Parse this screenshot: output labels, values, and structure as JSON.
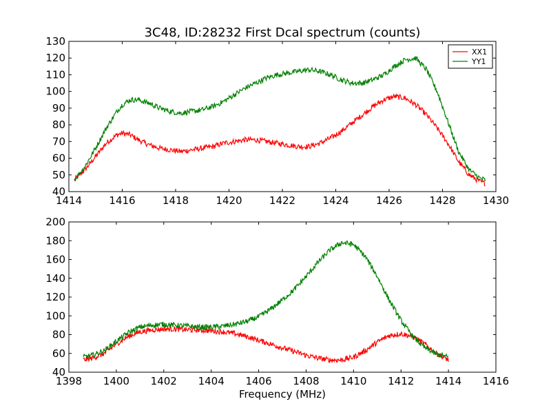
{
  "chart_data": [
    {
      "type": "line",
      "title": "3C48, ID:28232 First Dcal spectrum (counts)",
      "xlabel": "",
      "ylabel": "",
      "xlim": [
        1414,
        1430
      ],
      "ylim": [
        40,
        130
      ],
      "xticks": [
        1414,
        1416,
        1418,
        1420,
        1422,
        1424,
        1426,
        1428,
        1430
      ],
      "yticks": [
        40,
        50,
        60,
        70,
        80,
        90,
        100,
        110,
        120,
        130
      ],
      "grid": false,
      "legend": "top-right",
      "series": [
        {
          "name": "XX1",
          "color": "#ff0000",
          "x": [
            1414.2,
            1414.6,
            1415.0,
            1415.4,
            1415.8,
            1416.0,
            1416.3,
            1416.6,
            1417.0,
            1417.4,
            1417.8,
            1418.2,
            1418.6,
            1419.0,
            1419.4,
            1419.8,
            1420.2,
            1420.6,
            1421.0,
            1421.4,
            1421.8,
            1422.2,
            1422.6,
            1423.0,
            1423.4,
            1423.8,
            1424.2,
            1424.6,
            1425.0,
            1425.4,
            1425.8,
            1426.2,
            1426.6,
            1427.0,
            1427.4,
            1427.8,
            1428.2,
            1428.6,
            1429.0,
            1429.4,
            1429.6
          ],
          "values": [
            47,
            53,
            61,
            69,
            74,
            75,
            74,
            71,
            68,
            66,
            65,
            64,
            65,
            66,
            67,
            69,
            70,
            71,
            71,
            70,
            69,
            68,
            67,
            67,
            69,
            72,
            76,
            81,
            86,
            91,
            95,
            97,
            96,
            92,
            86,
            78,
            69,
            58,
            50,
            46,
            45
          ]
        },
        {
          "name": "YY1",
          "color": "#008000",
          "x": [
            1414.2,
            1414.6,
            1415.0,
            1415.4,
            1415.8,
            1416.0,
            1416.3,
            1416.6,
            1417.0,
            1417.4,
            1417.8,
            1418.2,
            1418.6,
            1419.0,
            1419.4,
            1419.8,
            1420.2,
            1420.6,
            1421.0,
            1421.4,
            1421.8,
            1422.2,
            1422.6,
            1423.0,
            1423.4,
            1423.8,
            1424.2,
            1424.6,
            1425.0,
            1425.4,
            1425.8,
            1426.2,
            1426.6,
            1427.0,
            1427.4,
            1427.8,
            1428.2,
            1428.6,
            1429.0,
            1429.4,
            1429.6
          ],
          "values": [
            47,
            55,
            66,
            78,
            88,
            92,
            95,
            95,
            93,
            90,
            88,
            87,
            88,
            89,
            91,
            94,
            98,
            102,
            105,
            108,
            110,
            111,
            112,
            113,
            112,
            110,
            107,
            105,
            105,
            107,
            110,
            115,
            119,
            120,
            113,
            100,
            82,
            64,
            53,
            48,
            47
          ]
        }
      ]
    },
    {
      "type": "line",
      "title": "",
      "xlabel": "Frequency (MHz)",
      "ylabel": "",
      "xlim": [
        1398,
        1416
      ],
      "ylim": [
        40,
        200
      ],
      "xticks": [
        1398,
        1400,
        1402,
        1404,
        1406,
        1408,
        1410,
        1412,
        1414,
        1416
      ],
      "yticks": [
        40,
        60,
        80,
        100,
        120,
        140,
        160,
        180,
        200
      ],
      "grid": false,
      "legend": "none",
      "series": [
        {
          "name": "XX1",
          "color": "#ff0000",
          "x": [
            1398.6,
            1399.0,
            1399.5,
            1400.0,
            1400.5,
            1401.0,
            1401.5,
            1402.0,
            1402.5,
            1403.0,
            1403.5,
            1404.0,
            1404.5,
            1405.0,
            1405.5,
            1406.0,
            1406.5,
            1407.0,
            1407.5,
            1408.0,
            1408.5,
            1409.0,
            1409.5,
            1410.0,
            1410.5,
            1411.0,
            1411.5,
            1412.0,
            1412.5,
            1413.0,
            1413.5,
            1414.0
          ],
          "values": [
            53,
            55,
            60,
            70,
            78,
            83,
            85,
            86,
            86,
            85,
            85,
            84,
            83,
            81,
            78,
            74,
            70,
            66,
            62,
            58,
            55,
            53,
            53,
            56,
            63,
            72,
            79,
            81,
            78,
            70,
            60,
            53
          ]
        },
        {
          "name": "YY1",
          "color": "#008000",
          "x": [
            1398.6,
            1399.0,
            1399.5,
            1400.0,
            1400.5,
            1401.0,
            1401.5,
            1402.0,
            1402.5,
            1403.0,
            1403.5,
            1404.0,
            1404.5,
            1405.0,
            1405.5,
            1406.0,
            1406.5,
            1407.0,
            1407.5,
            1408.0,
            1408.5,
            1409.0,
            1409.5,
            1410.0,
            1410.5,
            1411.0,
            1411.5,
            1412.0,
            1412.5,
            1413.0,
            1413.5,
            1414.0
          ],
          "values": [
            56,
            58,
            63,
            73,
            82,
            88,
            90,
            91,
            90,
            89,
            88,
            88,
            89,
            91,
            94,
            99,
            107,
            117,
            128,
            142,
            157,
            170,
            178,
            176,
            163,
            142,
            117,
            95,
            78,
            66,
            59,
            56
          ]
        }
      ]
    }
  ]
}
